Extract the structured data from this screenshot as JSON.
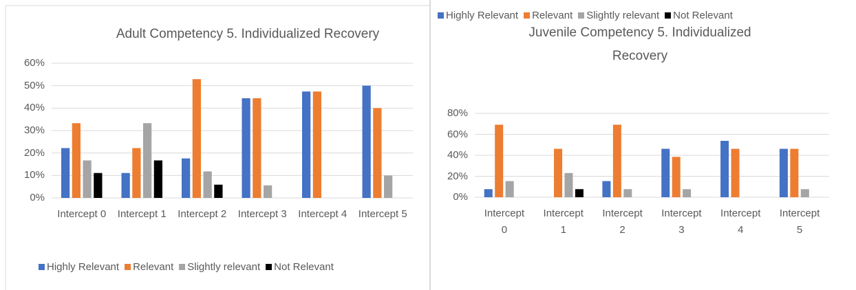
{
  "chart_data": [
    {
      "type": "bar",
      "title": "Adult Competency 5. Individualized Recovery",
      "categories": [
        "Intercept 0",
        "Intercept 1",
        "Intercept 2",
        "Intercept 3",
        "Intercept 4",
        "Intercept 5"
      ],
      "series": [
        {
          "name": "Highly Relevant",
          "color": "#4472c4",
          "values": [
            22.2,
            11.1,
            17.6,
            44.4,
            47.4,
            50
          ]
        },
        {
          "name": "Relevant",
          "color": "#ed7d31",
          "values": [
            33.3,
            22.2,
            52.9,
            44.4,
            47.4,
            40
          ]
        },
        {
          "name": "Slightly relevant",
          "color": "#a5a5a5",
          "values": [
            16.7,
            33.3,
            11.8,
            5.6,
            0,
            10
          ]
        },
        {
          "name": "Not Relevant",
          "color": "#000000",
          "values": [
            11.1,
            16.7,
            5.9,
            0,
            0,
            0
          ]
        }
      ],
      "ylim": [
        0,
        60
      ],
      "yticks": [
        {
          "value": 0,
          "label": "0%"
        },
        {
          "value": 10,
          "label": "10%"
        },
        {
          "value": 20,
          "label": "20%"
        },
        {
          "value": 30,
          "label": "30%"
        },
        {
          "value": 40,
          "label": "40%"
        },
        {
          "value": 50,
          "label": "50%"
        },
        {
          "value": 60,
          "label": "60%"
        }
      ],
      "grid": true,
      "legend": "bottom"
    },
    {
      "type": "bar",
      "title": "Juvenile Competency 5. Individualized Recovery",
      "categories": [
        "Intercept 0",
        "Intercept 1",
        "Intercept 2",
        "Intercept 3",
        "Intercept 4",
        "Intercept 5"
      ],
      "series": [
        {
          "name": "Highly Relevant",
          "color": "#4472c4",
          "values": [
            7.7,
            0,
            15.4,
            46.2,
            53.8,
            46.2
          ]
        },
        {
          "name": "Relevant",
          "color": "#ed7d31",
          "values": [
            69.2,
            46.2,
            69.2,
            38.5,
            46.2,
            46.2
          ]
        },
        {
          "name": "Slightly relevant",
          "color": "#a5a5a5",
          "values": [
            15.4,
            23.1,
            7.7,
            7.7,
            0,
            7.7
          ]
        },
        {
          "name": "Not Relevant",
          "color": "#000000",
          "values": [
            0,
            7.7,
            0,
            0,
            0,
            0
          ]
        }
      ],
      "ylim": [
        0,
        80
      ],
      "yticks": [
        {
          "value": 0,
          "label": "0%"
        },
        {
          "value": 20,
          "label": "20%"
        },
        {
          "value": 40,
          "label": "40%"
        },
        {
          "value": 60,
          "label": "60%"
        },
        {
          "value": 80,
          "label": "80%"
        }
      ],
      "grid": true,
      "legend": "top"
    }
  ]
}
